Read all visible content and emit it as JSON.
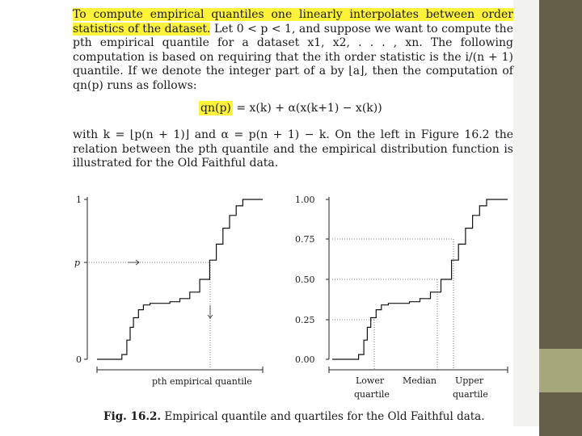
{
  "paragraph1": {
    "highlight": "To compute empirical quantiles one linearly interpolates between order statistics of the dataset.",
    "rest": " Let 0 < p < 1, and suppose we want to compute the pth empirical quantile for a dataset x1, x2, . . . , xn. The following computation is based on requiring that the ith order statistic is the i/(n + 1) quantile. If we denote the integer part of a by ⌊a⌋, then the computation of qn(p) runs as follows:"
  },
  "formula": {
    "lhs": "qn(p)",
    "rhs": " = x(k) + α(x(k+1) − x(k))"
  },
  "paragraph2": "with k = ⌊p(n + 1)⌋ and α = p(n + 1) − k. On the left in Figure 16.2 the relation between the pth quantile and the empirical distribution function is illustrated for the Old Faithful data.",
  "left_chart": {
    "ytick_top": "1",
    "ytick_p": "p",
    "ytick_bottom": "0",
    "xlabel": "pth empirical quantile"
  },
  "right_chart": {
    "yticks": [
      "1.00",
      "0.75",
      "0.50",
      "0.25",
      "0.00"
    ],
    "lower_label": [
      "Lower",
      "quartile"
    ],
    "median_label": "Median",
    "upper_label": [
      "Upper",
      "quartile"
    ]
  },
  "caption": {
    "label": "Fig. 16.2.",
    "text": " Empirical quantile and quartiles for the Old Faithful data."
  },
  "chart_data": [
    {
      "type": "line",
      "xlabel": "pth empirical quantile",
      "ylabel": "",
      "ylim": [
        0,
        1
      ],
      "x": [
        0.0,
        0.12,
        0.15,
        0.18,
        0.2,
        0.22,
        0.25,
        0.28,
        0.32,
        0.38,
        0.44,
        0.5,
        0.56,
        0.62,
        0.68,
        0.72,
        0.76,
        0.8,
        0.84,
        0.88,
        0.92,
        1.0
      ],
      "y": [
        0.0,
        0.0,
        0.03,
        0.12,
        0.2,
        0.26,
        0.31,
        0.34,
        0.35,
        0.35,
        0.36,
        0.38,
        0.42,
        0.5,
        0.62,
        0.72,
        0.82,
        0.9,
        0.96,
        1.0,
        1.0,
        1.0
      ],
      "p_value": 0.62
    },
    {
      "type": "line",
      "xlabel": "",
      "ylabel": "",
      "ylim": [
        0,
        1
      ],
      "yticks": [
        0.0,
        0.25,
        0.5,
        0.75,
        1.0
      ],
      "x": [
        0.0,
        0.12,
        0.15,
        0.18,
        0.2,
        0.22,
        0.25,
        0.28,
        0.32,
        0.38,
        0.44,
        0.5,
        0.56,
        0.62,
        0.68,
        0.72,
        0.76,
        0.8,
        0.84,
        0.88,
        0.92,
        1.0
      ],
      "y": [
        0.0,
        0.0,
        0.03,
        0.12,
        0.2,
        0.26,
        0.31,
        0.34,
        0.35,
        0.35,
        0.36,
        0.38,
        0.42,
        0.5,
        0.62,
        0.72,
        0.82,
        0.9,
        0.96,
        1.0,
        1.0,
        1.0
      ],
      "quartiles": [
        0.25,
        0.5,
        0.75
      ]
    }
  ]
}
